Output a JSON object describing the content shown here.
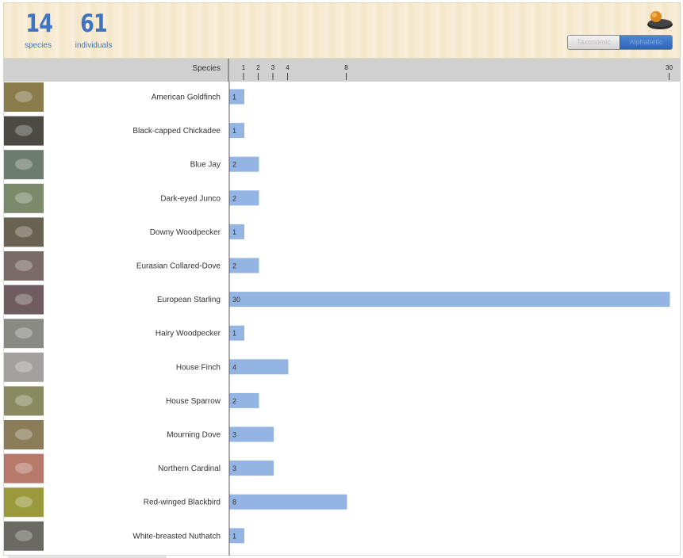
{
  "summary": {
    "species_count": "14",
    "species_label": "species",
    "individuals_count": "61",
    "individuals_label": "individuals"
  },
  "sort_toggle": {
    "options": [
      "Taxonomic",
      "Alphabetic"
    ],
    "selected": "Alphabetic"
  },
  "colors": {
    "bar": "#94b4e3",
    "accent": "#3f73c4"
  },
  "chart_data": {
    "type": "bar",
    "orientation": "horizontal",
    "category_axis_label": "Species",
    "x_tick_labels": [
      1,
      2,
      3,
      4,
      8,
      30
    ],
    "xlim": [
      0,
      30
    ],
    "grid": false,
    "categories": [
      "American Goldfinch",
      "Black-capped Chickadee",
      "Blue Jay",
      "Dark-eyed Junco",
      "Downy Woodpecker",
      "Eurasian Collared-Dove",
      "European Starling",
      "Hairy Woodpecker",
      "House Finch",
      "House Sparrow",
      "Mourning Dove",
      "Northern Cardinal",
      "Red-winged Blackbird",
      "White-breasted Nuthatch"
    ],
    "values": [
      1,
      1,
      2,
      2,
      1,
      2,
      30,
      1,
      4,
      2,
      3,
      3,
      8,
      1
    ]
  }
}
